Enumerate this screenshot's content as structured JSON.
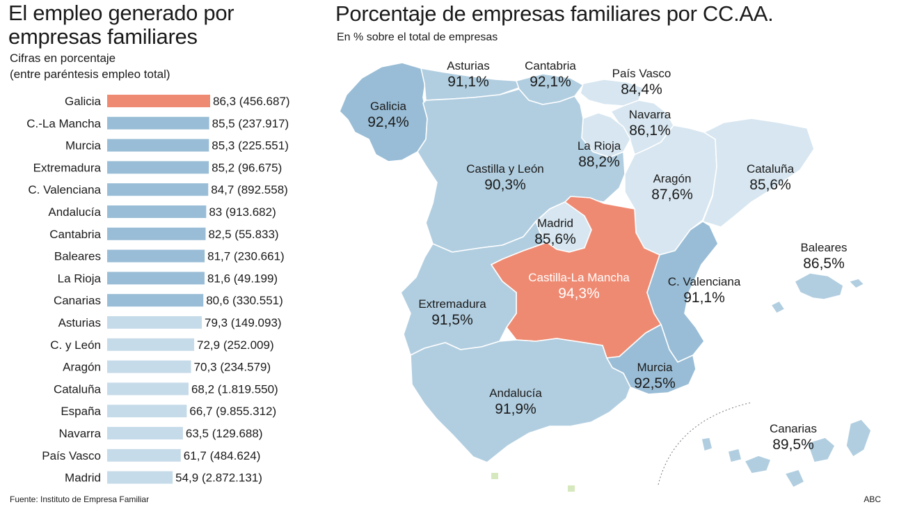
{
  "left_panel": {
    "title_line1": "El empleo generado por",
    "title_line2": "empresas familiares",
    "subtitle_line1": "Cifras en porcentaje",
    "subtitle_line2": "(entre paréntesis empleo total)"
  },
  "right_panel": {
    "title": "Porcentaje de empresas familiares por CC.AA.",
    "subtitle": "En % sobre el total de empresas"
  },
  "footer": {
    "source": "Fuente: Instituto de Empresa Familiar",
    "credit": "ABC"
  },
  "colors": {
    "highlight": "#ef8a72",
    "dark_blue": "#99bdd6",
    "mid_blue": "#b1cee0",
    "light_blue": "#c6dbe9",
    "pale_blue": "#d7e6f0",
    "border": "#ffffff"
  },
  "chart_data": [
    {
      "type": "bar",
      "orientation": "horizontal",
      "categories": [
        "Galicia",
        "C.-La Mancha",
        "Murcia",
        "Extremadura",
        "C. Valenciana",
        "Andalucía",
        "Cantabria",
        "Baleares",
        "La Rioja",
        "Canarias",
        "Asturias",
        "C. y León",
        "Aragón",
        "Cataluña",
        "España",
        "Navarra",
        "País Vasco",
        "Madrid"
      ],
      "values": [
        86.3,
        85.5,
        85.3,
        85.2,
        84.7,
        83,
        82.5,
        81.7,
        81.6,
        80.6,
        79.3,
        72.9,
        70.3,
        68.2,
        66.7,
        63.5,
        61.7,
        54.9
      ],
      "value_labels": [
        "86,3 (456.687)",
        "85,5 (237.917)",
        "85,3 (225.551)",
        "85,2 (96.675)",
        "84,7 (892.558)",
        "83 (913.682)",
        "82,5 (55.833)",
        "81,7 (230.661)",
        "81,6 (49.199)",
        "80,6 (330.551)",
        "79,3 (149.093)",
        "72,9 (252.009)",
        "70,3 (234.579)",
        "68,2 (1.819.550)",
        "66,7 (9.855.312)",
        "63,5 (129.688)",
        "61,7 (484.624)",
        "54,9 (2.872.131)"
      ],
      "bar_colors": [
        "highlight",
        "dark_blue",
        "dark_blue",
        "dark_blue",
        "dark_blue",
        "dark_blue",
        "dark_blue",
        "dark_blue",
        "dark_blue",
        "dark_blue",
        "light_blue",
        "light_blue",
        "light_blue",
        "light_blue",
        "light_blue",
        "light_blue",
        "light_blue",
        "light_blue"
      ],
      "grid": false
    },
    {
      "type": "choropleth",
      "regions": [
        {
          "name": "Galicia",
          "label": "92,4%",
          "value": 92.4,
          "color": "dark_blue"
        },
        {
          "name": "Asturias",
          "label": "91,1%",
          "value": 91.1,
          "color": "mid_blue"
        },
        {
          "name": "Cantabria",
          "label": "92,1%",
          "value": 92.1,
          "color": "mid_blue"
        },
        {
          "name": "País Vasco",
          "label": "84,4%",
          "value": 84.4,
          "color": "pale_blue"
        },
        {
          "name": "Navarra",
          "label": "86,1%",
          "value": 86.1,
          "color": "pale_blue"
        },
        {
          "name": "La Rioja",
          "label": "88,2%",
          "value": 88.2,
          "color": "pale_blue"
        },
        {
          "name": "Castilla y León",
          "label": "90,3%",
          "value": 90.3,
          "color": "mid_blue"
        },
        {
          "name": "Aragón",
          "label": "87,6%",
          "value": 87.6,
          "color": "pale_blue"
        },
        {
          "name": "Cataluña",
          "label": "85,6%",
          "value": 85.6,
          "color": "pale_blue"
        },
        {
          "name": "Madrid",
          "label": "85,6%",
          "value": 85.6,
          "color": "pale_blue"
        },
        {
          "name": "Baleares",
          "label": "86,5%",
          "value": 86.5,
          "color": "mid_blue"
        },
        {
          "name": "Castilla-La Mancha",
          "label": "94,3%",
          "value": 94.3,
          "color": "highlight"
        },
        {
          "name": "C. Valenciana",
          "label": "91,1%",
          "value": 91.1,
          "color": "dark_blue"
        },
        {
          "name": "Extremadura",
          "label": "91,5%",
          "value": 91.5,
          "color": "mid_blue"
        },
        {
          "name": "Murcia",
          "label": "92,5%",
          "value": 92.5,
          "color": "dark_blue"
        },
        {
          "name": "Andalucía",
          "label": "91,9%",
          "value": 91.9,
          "color": "mid_blue"
        },
        {
          "name": "Canarias",
          "label": "89,5%",
          "value": 89.5,
          "color": "mid_blue"
        }
      ]
    }
  ]
}
